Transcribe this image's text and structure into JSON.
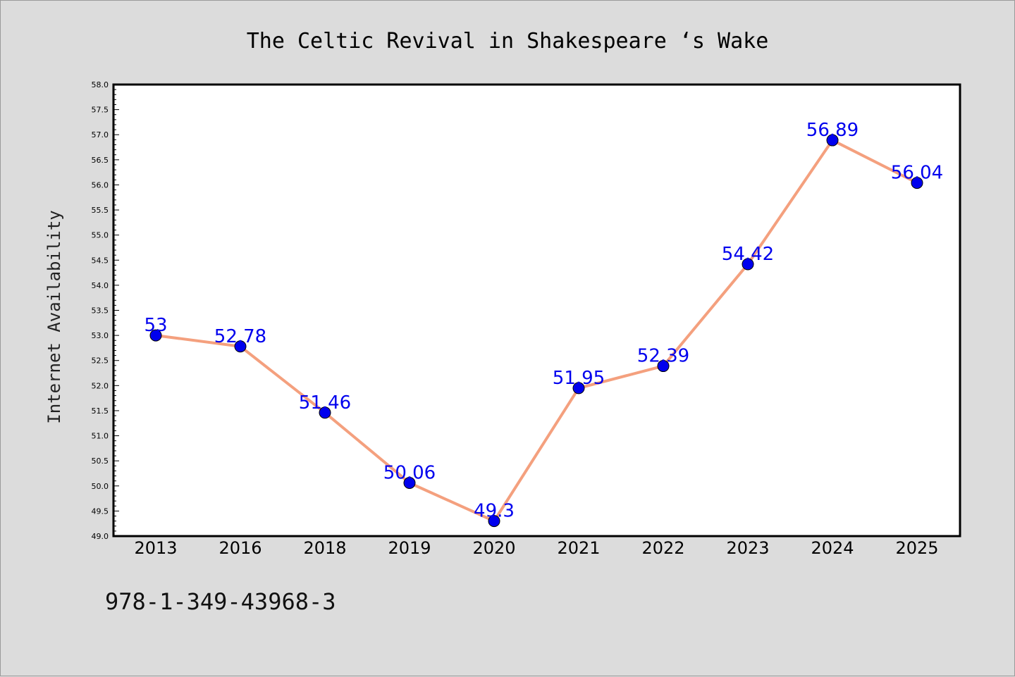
{
  "chart_data": {
    "type": "line",
    "title": "The Celtic Revival in Shakespeare ‘s Wake",
    "xlabel": "",
    "ylabel": "Internet Availability",
    "categories": [
      "2013",
      "2016",
      "2018",
      "2019",
      "2020",
      "2021",
      "2022",
      "2023",
      "2024",
      "2025"
    ],
    "values": [
      53,
      52.78,
      51.46,
      50.06,
      49.3,
      51.95,
      52.39,
      54.42,
      56.89,
      56.04
    ],
    "data_labels": [
      "53",
      "52.78",
      "51.46",
      "50.06",
      "49.3",
      "51.95",
      "52.39",
      "54.42",
      "56.89",
      "56.04"
    ],
    "ylim": [
      49.0,
      58.0
    ],
    "yticks": [
      "49.0",
      "49.5",
      "50.0",
      "50.5",
      "51.0",
      "51.5",
      "52.0",
      "52.5",
      "53.0",
      "53.5",
      "54.0",
      "54.5",
      "55.0",
      "55.5",
      "56.0",
      "56.5",
      "57.0",
      "57.5",
      "58.0"
    ],
    "grid": false,
    "legend": "none",
    "colors": {
      "line": "#f4a07e",
      "marker": "#0000ee",
      "data_label": "#0000ee",
      "background": "#dcdcdc",
      "plot_background": "#ffffff"
    }
  },
  "footer": {
    "isbn": "978-1-349-43968-3"
  }
}
